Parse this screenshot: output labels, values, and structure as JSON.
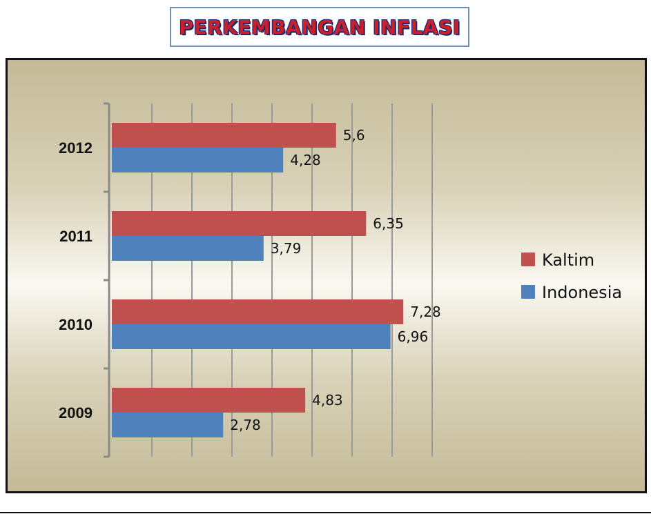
{
  "page": {
    "title": "PERKEMBANGAN INFLASI"
  },
  "chart_data": {
    "type": "bar",
    "orientation": "horizontal",
    "title": "",
    "categories": [
      "2012",
      "2011",
      "2010",
      "2009"
    ],
    "series": [
      {
        "name": "Kaltim",
        "values": [
          5.6,
          6.35,
          7.28,
          4.83
        ],
        "labels": [
          "5,6",
          "6,35",
          "7,28",
          "4,83"
        ],
        "color": "#c0504d"
      },
      {
        "name": "Indonesia",
        "values": [
          4.28,
          3.79,
          6.96,
          2.78
        ],
        "labels": [
          "4,28",
          "3,79",
          "6,96",
          "2,78"
        ],
        "color": "#4f81bd"
      }
    ],
    "xlim": [
      0,
      8
    ],
    "gridlines": true,
    "legend": "right"
  }
}
